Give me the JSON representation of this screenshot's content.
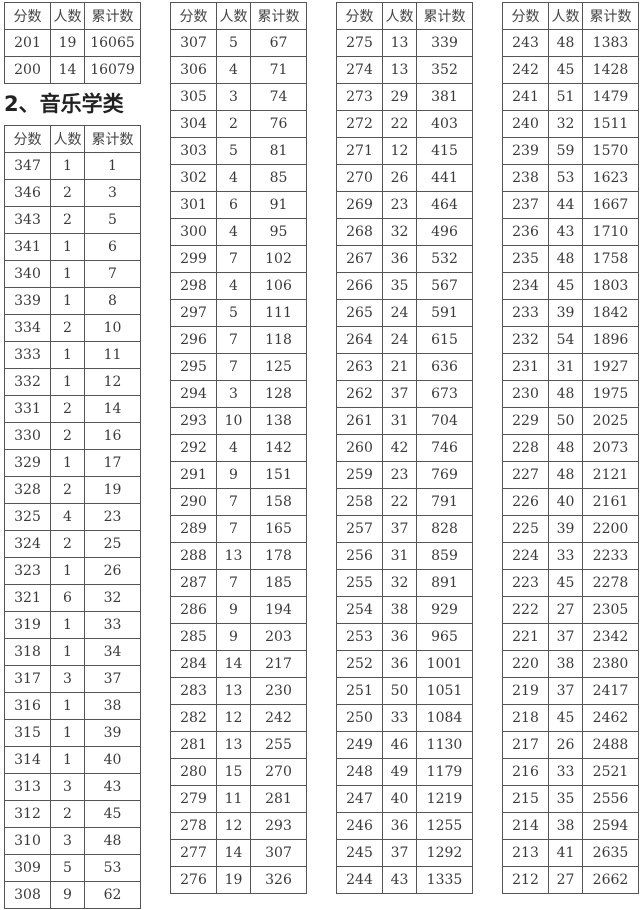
{
  "headers": [
    "分数",
    "人数",
    "累计数"
  ],
  "section_heading": "2、音乐学类",
  "prev_table_rows": [
    [
      "201",
      "19",
      "16065"
    ],
    [
      "200",
      "14",
      "16079"
    ]
  ],
  "music_table_col1_rows": [
    [
      "347",
      "1",
      "1"
    ],
    [
      "346",
      "2",
      "3"
    ],
    [
      "343",
      "2",
      "5"
    ],
    [
      "341",
      "1",
      "6"
    ],
    [
      "340",
      "1",
      "7"
    ],
    [
      "339",
      "1",
      "8"
    ],
    [
      "334",
      "2",
      "10"
    ],
    [
      "333",
      "1",
      "11"
    ],
    [
      "332",
      "1",
      "12"
    ],
    [
      "331",
      "2",
      "14"
    ],
    [
      "330",
      "2",
      "16"
    ],
    [
      "329",
      "1",
      "17"
    ],
    [
      "328",
      "2",
      "19"
    ],
    [
      "325",
      "4",
      "23"
    ],
    [
      "324",
      "2",
      "25"
    ],
    [
      "323",
      "1",
      "26"
    ],
    [
      "321",
      "6",
      "32"
    ],
    [
      "319",
      "1",
      "33"
    ],
    [
      "318",
      "1",
      "34"
    ],
    [
      "317",
      "3",
      "37"
    ],
    [
      "316",
      "1",
      "38"
    ],
    [
      "315",
      "1",
      "39"
    ],
    [
      "314",
      "1",
      "40"
    ],
    [
      "313",
      "3",
      "43"
    ],
    [
      "312",
      "2",
      "45"
    ],
    [
      "310",
      "3",
      "48"
    ],
    [
      "309",
      "5",
      "53"
    ],
    [
      "308",
      "9",
      "62"
    ]
  ],
  "music_table_col2_rows": [
    [
      "307",
      "5",
      "67"
    ],
    [
      "306",
      "4",
      "71"
    ],
    [
      "305",
      "3",
      "74"
    ],
    [
      "304",
      "2",
      "76"
    ],
    [
      "303",
      "5",
      "81"
    ],
    [
      "302",
      "4",
      "85"
    ],
    [
      "301",
      "6",
      "91"
    ],
    [
      "300",
      "4",
      "95"
    ],
    [
      "299",
      "7",
      "102"
    ],
    [
      "298",
      "4",
      "106"
    ],
    [
      "297",
      "5",
      "111"
    ],
    [
      "296",
      "7",
      "118"
    ],
    [
      "295",
      "7",
      "125"
    ],
    [
      "294",
      "3",
      "128"
    ],
    [
      "293",
      "10",
      "138"
    ],
    [
      "292",
      "4",
      "142"
    ],
    [
      "291",
      "9",
      "151"
    ],
    [
      "290",
      "7",
      "158"
    ],
    [
      "289",
      "7",
      "165"
    ],
    [
      "288",
      "13",
      "178"
    ],
    [
      "287",
      "7",
      "185"
    ],
    [
      "286",
      "9",
      "194"
    ],
    [
      "285",
      "9",
      "203"
    ],
    [
      "284",
      "14",
      "217"
    ],
    [
      "283",
      "13",
      "230"
    ],
    [
      "282",
      "12",
      "242"
    ],
    [
      "281",
      "13",
      "255"
    ],
    [
      "280",
      "15",
      "270"
    ],
    [
      "279",
      "11",
      "281"
    ],
    [
      "278",
      "12",
      "293"
    ],
    [
      "277",
      "14",
      "307"
    ],
    [
      "276",
      "19",
      "326"
    ]
  ],
  "music_table_col3_rows": [
    [
      "275",
      "13",
      "339"
    ],
    [
      "274",
      "13",
      "352"
    ],
    [
      "273",
      "29",
      "381"
    ],
    [
      "272",
      "22",
      "403"
    ],
    [
      "271",
      "12",
      "415"
    ],
    [
      "270",
      "26",
      "441"
    ],
    [
      "269",
      "23",
      "464"
    ],
    [
      "268",
      "32",
      "496"
    ],
    [
      "267",
      "36",
      "532"
    ],
    [
      "266",
      "35",
      "567"
    ],
    [
      "265",
      "24",
      "591"
    ],
    [
      "264",
      "24",
      "615"
    ],
    [
      "263",
      "21",
      "636"
    ],
    [
      "262",
      "37",
      "673"
    ],
    [
      "261",
      "31",
      "704"
    ],
    [
      "260",
      "42",
      "746"
    ],
    [
      "259",
      "23",
      "769"
    ],
    [
      "258",
      "22",
      "791"
    ],
    [
      "257",
      "37",
      "828"
    ],
    [
      "256",
      "31",
      "859"
    ],
    [
      "255",
      "32",
      "891"
    ],
    [
      "254",
      "38",
      "929"
    ],
    [
      "253",
      "36",
      "965"
    ],
    [
      "252",
      "36",
      "1001"
    ],
    [
      "251",
      "50",
      "1051"
    ],
    [
      "250",
      "33",
      "1084"
    ],
    [
      "249",
      "46",
      "1130"
    ],
    [
      "248",
      "49",
      "1179"
    ],
    [
      "247",
      "40",
      "1219"
    ],
    [
      "246",
      "36",
      "1255"
    ],
    [
      "245",
      "37",
      "1292"
    ],
    [
      "244",
      "43",
      "1335"
    ]
  ],
  "music_table_col4_rows": [
    [
      "243",
      "48",
      "1383"
    ],
    [
      "242",
      "45",
      "1428"
    ],
    [
      "241",
      "51",
      "1479"
    ],
    [
      "240",
      "32",
      "1511"
    ],
    [
      "239",
      "59",
      "1570"
    ],
    [
      "238",
      "53",
      "1623"
    ],
    [
      "237",
      "44",
      "1667"
    ],
    [
      "236",
      "43",
      "1710"
    ],
    [
      "235",
      "48",
      "1758"
    ],
    [
      "234",
      "45",
      "1803"
    ],
    [
      "233",
      "39",
      "1842"
    ],
    [
      "232",
      "54",
      "1896"
    ],
    [
      "231",
      "31",
      "1927"
    ],
    [
      "230",
      "48",
      "1975"
    ],
    [
      "229",
      "50",
      "2025"
    ],
    [
      "228",
      "48",
      "2073"
    ],
    [
      "227",
      "48",
      "2121"
    ],
    [
      "226",
      "40",
      "2161"
    ],
    [
      "225",
      "39",
      "2200"
    ],
    [
      "224",
      "33",
      "2233"
    ],
    [
      "223",
      "45",
      "2278"
    ],
    [
      "222",
      "27",
      "2305"
    ],
    [
      "221",
      "37",
      "2342"
    ],
    [
      "220",
      "38",
      "2380"
    ],
    [
      "219",
      "37",
      "2417"
    ],
    [
      "218",
      "45",
      "2462"
    ],
    [
      "217",
      "26",
      "2488"
    ],
    [
      "216",
      "33",
      "2521"
    ],
    [
      "215",
      "35",
      "2556"
    ],
    [
      "214",
      "38",
      "2594"
    ],
    [
      "213",
      "41",
      "2635"
    ],
    [
      "212",
      "27",
      "2662"
    ]
  ]
}
